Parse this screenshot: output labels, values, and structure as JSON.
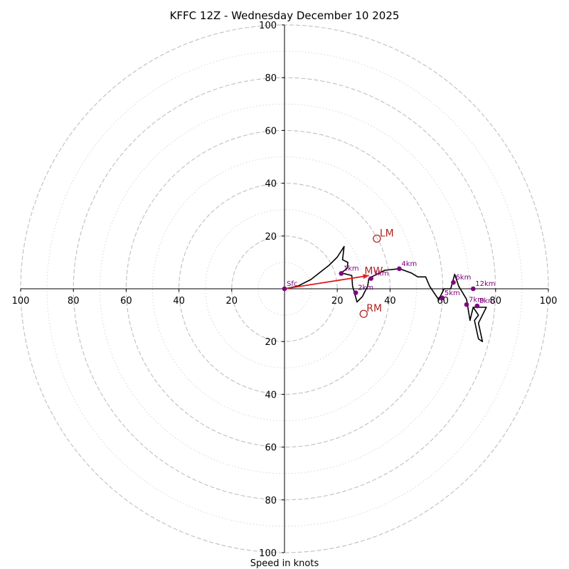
{
  "chart_data": {
    "type": "hodograph",
    "title": "KFFC 12Z - Wednesday December 10 2025",
    "xlabel": "Speed in knots",
    "units": "knots",
    "range": [
      -100,
      100
    ],
    "rings_major": [
      20,
      40,
      60,
      80,
      100
    ],
    "rings_minor": [
      10,
      30,
      50,
      70,
      90
    ],
    "x_ticks": [
      {
        "v": -100,
        "label": "100"
      },
      {
        "v": -80,
        "label": "80"
      },
      {
        "v": -60,
        "label": "60"
      },
      {
        "v": -40,
        "label": "40"
      },
      {
        "v": -20,
        "label": "20"
      },
      {
        "v": 20,
        "label": "20"
      },
      {
        "v": 40,
        "label": "40"
      },
      {
        "v": 60,
        "label": "60"
      },
      {
        "v": 80,
        "label": "80"
      },
      {
        "v": 100,
        "label": "100"
      }
    ],
    "y_ticks": [
      {
        "v": 100,
        "label": "100"
      },
      {
        "v": 80,
        "label": "80"
      },
      {
        "v": 60,
        "label": "60"
      },
      {
        "v": 40,
        "label": "40"
      },
      {
        "v": 20,
        "label": "20"
      },
      {
        "v": -20,
        "label": "20"
      },
      {
        "v": -40,
        "label": "40"
      },
      {
        "v": -60,
        "label": "60"
      },
      {
        "v": -80,
        "label": "80"
      },
      {
        "v": -100,
        "label": "100"
      }
    ],
    "trace": [
      [
        0,
        0
      ],
      [
        5,
        1
      ],
      [
        10,
        3.5
      ],
      [
        17,
        9
      ],
      [
        20,
        12
      ],
      [
        22.6,
        16
      ],
      [
        22,
        11
      ],
      [
        24,
        10
      ],
      [
        23.8,
        7.8
      ],
      [
        21.5,
        6
      ],
      [
        25.5,
        5
      ],
      [
        25.8,
        1
      ],
      [
        27.5,
        -5
      ],
      [
        29.5,
        -3
      ],
      [
        31.5,
        1
      ],
      [
        32,
        4
      ],
      [
        38,
        7
      ],
      [
        43.5,
        7.6
      ],
      [
        48,
        6
      ],
      [
        50.5,
        4.5
      ],
      [
        53.5,
        4.5
      ],
      [
        55,
        1
      ],
      [
        58,
        -3.5
      ],
      [
        58.5,
        -4
      ],
      [
        60.5,
        0
      ],
      [
        63,
        0
      ],
      [
        64.5,
        5.5
      ],
      [
        66,
        1
      ],
      [
        69,
        -4
      ],
      [
        70.3,
        -12
      ],
      [
        71.5,
        -7
      ],
      [
        73.5,
        -7
      ],
      [
        76.5,
        -7
      ],
      [
        73.5,
        -13
      ],
      [
        75,
        -20
      ],
      [
        73.5,
        -19
      ],
      [
        72,
        -12
      ],
      [
        73.5,
        -10
      ],
      [
        71.5,
        -7
      ]
    ],
    "height_markers": [
      {
        "label": "Sfc",
        "u": 0,
        "v": 0
      },
      {
        "label": "1km",
        "u": 21.5,
        "v": 5.8
      },
      {
        "label": "2km",
        "u": 27,
        "v": -1.5
      },
      {
        "label": "3km",
        "u": 32.8,
        "v": 3.9
      },
      {
        "label": "4km",
        "u": 43.5,
        "v": 7.6
      },
      {
        "label": "5km",
        "u": 59.8,
        "v": -3.5
      },
      {
        "label": "6km",
        "u": 64,
        "v": 2.4
      },
      {
        "label": "7km",
        "u": 69,
        "v": -6
      },
      {
        "label": "8km",
        "u": 73,
        "v": -6.5
      },
      {
        "label": "12km",
        "u": 71.5,
        "v": 0
      }
    ],
    "storm_motion": [
      {
        "label": "LM",
        "u": 35,
        "v": 19
      },
      {
        "label": "MW",
        "u": 33,
        "v": 5
      },
      {
        "label": "RM",
        "u": 30,
        "v": -9.5
      }
    ],
    "shear_vector": {
      "from": [
        0,
        0
      ],
      "to": [
        32,
        5
      ]
    },
    "colors": {
      "trace": "#000000",
      "marker": "#800080",
      "storm_motion": "#b22222",
      "shear_arrow": "#e31a1c",
      "grid": "#bfbfbf"
    }
  }
}
